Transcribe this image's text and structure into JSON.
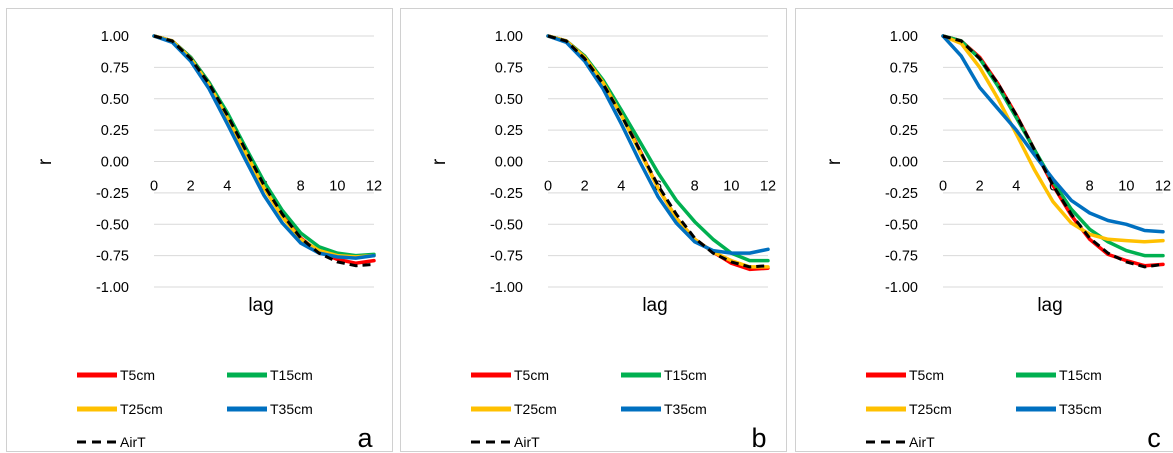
{
  "chart_data": [
    {
      "type": "line",
      "panel_label": "a",
      "xlabel": "lag",
      "ylabel": "r",
      "xlim": [
        0,
        12
      ],
      "ylim": [
        -1.0,
        1.0
      ],
      "x_ticks": [
        "0",
        "2",
        "4",
        "6",
        "8",
        "10",
        "12"
      ],
      "y_ticks": [
        "1.00",
        "0.75",
        "0.50",
        "0.25",
        "0.00",
        "-0.25",
        "-0.50",
        "-0.75",
        "-1.00"
      ],
      "grid": true,
      "legend": "bottom",
      "x": [
        0,
        1,
        2,
        3,
        4,
        5,
        6,
        7,
        8,
        9,
        10,
        11,
        12
      ],
      "series": [
        {
          "name": "T5cm",
          "color": "#ff0000",
          "style": "solid",
          "values": [
            1.0,
            0.96,
            0.83,
            0.63,
            0.38,
            0.09,
            -0.19,
            -0.43,
            -0.61,
            -0.72,
            -0.78,
            -0.81,
            -0.79
          ]
        },
        {
          "name": "T15cm",
          "color": "#00b050",
          "style": "solid",
          "values": [
            1.0,
            0.96,
            0.83,
            0.63,
            0.39,
            0.11,
            -0.16,
            -0.39,
            -0.57,
            -0.68,
            -0.73,
            -0.75,
            -0.74
          ]
        },
        {
          "name": "T25cm",
          "color": "#ffc000",
          "style": "solid",
          "values": [
            1.0,
            0.96,
            0.82,
            0.61,
            0.35,
            0.07,
            -0.21,
            -0.44,
            -0.62,
            -0.71,
            -0.75,
            -0.76,
            -0.75
          ]
        },
        {
          "name": "T35cm",
          "color": "#0070c0",
          "style": "solid",
          "values": [
            1.0,
            0.95,
            0.8,
            0.58,
            0.3,
            0.01,
            -0.27,
            -0.49,
            -0.65,
            -0.73,
            -0.76,
            -0.77,
            -0.75
          ]
        },
        {
          "name": "AirT",
          "color": "#000000",
          "style": "dashed",
          "values": [
            1.0,
            0.96,
            0.82,
            0.62,
            0.37,
            0.09,
            -0.19,
            -0.42,
            -0.61,
            -0.73,
            -0.8,
            -0.83,
            -0.82
          ]
        }
      ]
    },
    {
      "type": "line",
      "panel_label": "b",
      "xlabel": "lag",
      "ylabel": "r",
      "xlim": [
        0,
        12
      ],
      "ylim": [
        -1.0,
        1.0
      ],
      "x_ticks": [
        "0",
        "2",
        "4",
        "6",
        "8",
        "10",
        "12"
      ],
      "y_ticks": [
        "1.00",
        "0.75",
        "0.50",
        "0.25",
        "0.00",
        "-0.25",
        "-0.50",
        "-0.75",
        "-1.00"
      ],
      "grid": true,
      "legend": "bottom",
      "x": [
        0,
        1,
        2,
        3,
        4,
        5,
        6,
        7,
        8,
        9,
        10,
        11,
        12
      ],
      "series": [
        {
          "name": "T5cm",
          "color": "#ff0000",
          "style": "solid",
          "values": [
            1.0,
            0.96,
            0.84,
            0.64,
            0.38,
            0.09,
            -0.21,
            -0.45,
            -0.62,
            -0.72,
            -0.81,
            -0.86,
            -0.85
          ]
        },
        {
          "name": "T15cm",
          "color": "#00b050",
          "style": "solid",
          "values": [
            1.0,
            0.96,
            0.84,
            0.65,
            0.41,
            0.16,
            -0.09,
            -0.31,
            -0.48,
            -0.62,
            -0.73,
            -0.79,
            -0.79
          ]
        },
        {
          "name": "T25cm",
          "color": "#ffc000",
          "style": "solid",
          "values": [
            1.0,
            0.96,
            0.83,
            0.63,
            0.37,
            0.08,
            -0.21,
            -0.45,
            -0.62,
            -0.72,
            -0.79,
            -0.84,
            -0.84
          ]
        },
        {
          "name": "T35cm",
          "color": "#0070c0",
          "style": "solid",
          "values": [
            1.0,
            0.95,
            0.8,
            0.58,
            0.3,
            0.0,
            -0.28,
            -0.49,
            -0.64,
            -0.71,
            -0.73,
            -0.73,
            -0.7
          ]
        },
        {
          "name": "AirT",
          "color": "#000000",
          "style": "dashed",
          "values": [
            1.0,
            0.96,
            0.82,
            0.62,
            0.37,
            0.09,
            -0.19,
            -0.42,
            -0.61,
            -0.73,
            -0.8,
            -0.84,
            -0.83
          ]
        }
      ]
    },
    {
      "type": "line",
      "panel_label": "c",
      "xlabel": "lag",
      "ylabel": "r",
      "xlim": [
        0,
        12
      ],
      "ylim": [
        -1.0,
        1.0
      ],
      "x_ticks": [
        "0",
        "2",
        "4",
        "6",
        "8",
        "10",
        "12"
      ],
      "y_ticks": [
        "1.00",
        "0.75",
        "0.50",
        "0.25",
        "0.00",
        "-0.25",
        "-0.50",
        "-0.75",
        "-1.00"
      ],
      "grid": true,
      "legend": "bottom",
      "x": [
        0,
        1,
        2,
        3,
        4,
        5,
        6,
        7,
        8,
        9,
        10,
        11,
        12
      ],
      "series": [
        {
          "name": "T5cm",
          "color": "#ff0000",
          "style": "solid",
          "values": [
            1.0,
            0.96,
            0.83,
            0.62,
            0.37,
            0.09,
            -0.19,
            -0.43,
            -0.62,
            -0.74,
            -0.79,
            -0.83,
            -0.82
          ]
        },
        {
          "name": "T15cm",
          "color": "#00b050",
          "style": "solid",
          "values": [
            1.0,
            0.96,
            0.82,
            0.6,
            0.35,
            0.09,
            -0.16,
            -0.38,
            -0.54,
            -0.64,
            -0.71,
            -0.75,
            -0.75
          ]
        },
        {
          "name": "T25cm",
          "color": "#ffc000",
          "style": "solid",
          "values": [
            1.0,
            0.94,
            0.75,
            0.5,
            0.22,
            -0.07,
            -0.32,
            -0.49,
            -0.58,
            -0.62,
            -0.63,
            -0.64,
            -0.63
          ]
        },
        {
          "name": "T35cm",
          "color": "#0070c0",
          "style": "solid",
          "values": [
            1.0,
            0.84,
            0.59,
            0.42,
            0.25,
            0.05,
            -0.14,
            -0.31,
            -0.41,
            -0.47,
            -0.5,
            -0.55,
            -0.56
          ]
        },
        {
          "name": "AirT",
          "color": "#000000",
          "style": "dashed",
          "values": [
            1.0,
            0.96,
            0.82,
            0.62,
            0.37,
            0.09,
            -0.19,
            -0.42,
            -0.61,
            -0.73,
            -0.8,
            -0.84,
            -0.82
          ]
        }
      ]
    }
  ]
}
